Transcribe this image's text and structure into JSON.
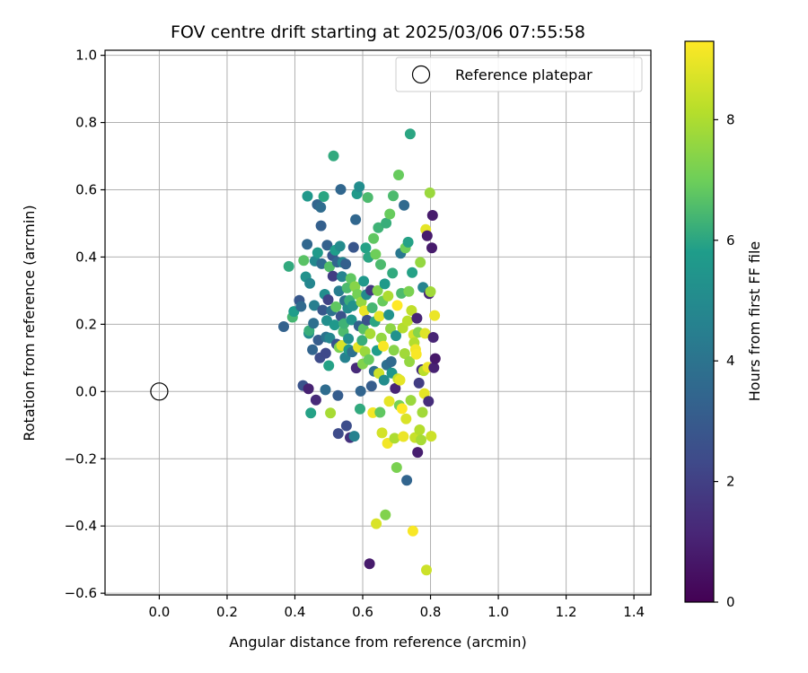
{
  "chart_data": {
    "type": "scatter",
    "title": "FOV centre drift starting at 2025/03/06 07:55:58",
    "xlabel": "Angular distance from reference (arcmin)",
    "ylabel": "Rotation from reference (arcmin)",
    "xlim": [
      -0.16,
      1.45
    ],
    "ylim": [
      -0.605,
      1.015
    ],
    "xticks": [
      "0.0",
      "0.2",
      "0.4",
      "0.6",
      "0.8",
      "1.0",
      "1.2",
      "1.4"
    ],
    "xtick_values": [
      0.0,
      0.2,
      0.4,
      0.6,
      0.8,
      1.0,
      1.2,
      1.4
    ],
    "yticks": [
      "−0.6",
      "−0.4",
      "−0.2",
      "0.0",
      "0.2",
      "0.4",
      "0.6",
      "0.8",
      "1.0"
    ],
    "ytick_values": [
      -0.6,
      -0.4,
      -0.2,
      0.0,
      0.2,
      0.4,
      0.6,
      0.8,
      1.0
    ],
    "grid": true,
    "legend": {
      "placement": "top-right",
      "entries": [
        "Reference platepar"
      ]
    },
    "reference_point": {
      "x": 0.0,
      "y": 0.0,
      "label": "Reference platepar"
    },
    "colorbar": {
      "label": "Hours from first FF file",
      "range": [
        0,
        9.3
      ],
      "ticks": [
        "0",
        "2",
        "4",
        "6",
        "8"
      ],
      "tick_values": [
        0,
        2,
        4,
        6,
        8
      ],
      "colormap": [
        "#440154",
        "#482777",
        "#3f4a8a",
        "#31678e",
        "#26838f",
        "#1f9d8a",
        "#6cce5a",
        "#b6de2b",
        "#fee825"
      ]
    },
    "points": [
      [
        0.367,
        0.193,
        3.3
      ],
      [
        0.382,
        0.372,
        6.1
      ],
      [
        0.393,
        0.221,
        6.4
      ],
      [
        0.397,
        0.238,
        5.8
      ],
      [
        0.413,
        0.271,
        2.9
      ],
      [
        0.418,
        0.253,
        3.6
      ],
      [
        0.424,
        0.018,
        2.7
      ],
      [
        0.426,
        0.39,
        6.7
      ],
      [
        0.432,
        0.341,
        5.3
      ],
      [
        0.436,
        0.438,
        3.5
      ],
      [
        0.437,
        0.581,
        5.6
      ],
      [
        0.44,
        0.008,
        1.0
      ],
      [
        0.441,
        0.173,
        5.0
      ],
      [
        0.442,
        0.181,
        6.2
      ],
      [
        0.444,
        0.322,
        4.8
      ],
      [
        0.447,
        -0.064,
        5.9
      ],
      [
        0.452,
        0.124,
        3.4
      ],
      [
        0.455,
        0.203,
        3.8
      ],
      [
        0.457,
        0.256,
        4.5
      ],
      [
        0.459,
        0.388,
        4.9
      ],
      [
        0.462,
        -0.025,
        1.3
      ],
      [
        0.466,
        0.556,
        3.4
      ],
      [
        0.467,
        0.413,
        5.7
      ],
      [
        0.469,
        0.153,
        3.1
      ],
      [
        0.474,
        0.1,
        2.4
      ],
      [
        0.476,
        0.548,
        3.7
      ],
      [
        0.477,
        0.493,
        3.2
      ],
      [
        0.479,
        0.38,
        3.7
      ],
      [
        0.482,
        0.242,
        2.9
      ],
      [
        0.485,
        0.58,
        6.0
      ],
      [
        0.488,
        0.289,
        5.1
      ],
      [
        0.49,
        0.005,
        3.7
      ],
      [
        0.491,
        0.114,
        2.3
      ],
      [
        0.492,
        0.162,
        4.0
      ],
      [
        0.494,
        0.211,
        5.2
      ],
      [
        0.495,
        0.435,
        3.3
      ],
      [
        0.498,
        0.273,
        2.1
      ],
      [
        0.5,
        0.077,
        5.9
      ],
      [
        0.502,
        0.371,
        6.6
      ],
      [
        0.503,
        0.159,
        4.8
      ],
      [
        0.505,
        -0.064,
        7.9
      ],
      [
        0.508,
        0.24,
        3.9
      ],
      [
        0.511,
        0.404,
        2.8
      ],
      [
        0.512,
        0.343,
        1.9
      ],
      [
        0.514,
        0.701,
        6.1
      ],
      [
        0.517,
        0.198,
        5.6
      ],
      [
        0.519,
        0.42,
        5.8
      ],
      [
        0.521,
        0.252,
        6.8
      ],
      [
        0.523,
        0.141,
        2.7
      ],
      [
        0.525,
        0.385,
        3.4
      ],
      [
        0.527,
        -0.012,
        3.1
      ],
      [
        0.528,
        -0.125,
        2.4
      ],
      [
        0.53,
        0.299,
        4.4
      ],
      [
        0.531,
        0.131,
        7.2
      ],
      [
        0.533,
        0.432,
        5.0
      ],
      [
        0.535,
        0.601,
        3.5
      ],
      [
        0.536,
        0.224,
        2.7
      ],
      [
        0.538,
        0.137,
        8.7
      ],
      [
        0.539,
        0.342,
        4.7
      ],
      [
        0.541,
        0.384,
        4.8
      ],
      [
        0.543,
        0.178,
        6.5
      ],
      [
        0.545,
        0.202,
        6.3
      ],
      [
        0.547,
        0.27,
        3.8
      ],
      [
        0.548,
        0.101,
        4.6
      ],
      [
        0.55,
        0.379,
        3.2
      ],
      [
        0.552,
        -0.102,
        2.5
      ],
      [
        0.554,
        0.308,
        6.5
      ],
      [
        0.556,
        0.248,
        5.0
      ],
      [
        0.558,
        0.157,
        5.2
      ],
      [
        0.559,
        0.124,
        5.6
      ],
      [
        0.561,
        0.271,
        6.2
      ],
      [
        0.563,
        -0.137,
        1.5
      ],
      [
        0.565,
        0.336,
        6.8
      ],
      [
        0.567,
        0.213,
        5.4
      ],
      [
        0.569,
        0.118,
        3.9
      ],
      [
        0.571,
        0.255,
        5.3
      ],
      [
        0.573,
        0.429,
        2.8
      ],
      [
        0.575,
        -0.133,
        4.6
      ],
      [
        0.577,
        0.312,
        7.4
      ],
      [
        0.579,
        0.511,
        3.5
      ],
      [
        0.581,
        0.07,
        1.3
      ],
      [
        0.583,
        0.588,
        5.7
      ],
      [
        0.585,
        0.289,
        7.1
      ],
      [
        0.587,
        0.132,
        8.9
      ],
      [
        0.589,
        0.195,
        3.3
      ],
      [
        0.59,
        0.609,
        5.1
      ],
      [
        0.592,
        -0.052,
        6.1
      ],
      [
        0.594,
        0.001,
        3.4
      ],
      [
        0.596,
        0.266,
        7.6
      ],
      [
        0.598,
        0.152,
        6.2
      ],
      [
        0.6,
        0.082,
        7.3
      ],
      [
        0.602,
        0.186,
        6.7
      ],
      [
        0.603,
        0.328,
        5.6
      ],
      [
        0.605,
        0.24,
        9.0
      ],
      [
        0.607,
        0.119,
        7.7
      ],
      [
        0.609,
        0.427,
        5.9
      ],
      [
        0.611,
        0.288,
        5.0
      ],
      [
        0.613,
        0.212,
        2.6
      ],
      [
        0.615,
        0.577,
        6.5
      ],
      [
        0.617,
        0.399,
        6.0
      ],
      [
        0.618,
        0.095,
        6.9
      ],
      [
        0.62,
        -0.512,
        0.8
      ],
      [
        0.622,
        0.172,
        7.9
      ],
      [
        0.624,
        0.301,
        1.7
      ],
      [
        0.626,
        0.016,
        3.1
      ],
      [
        0.628,
        0.249,
        6.4
      ],
      [
        0.63,
        -0.063,
        9.1
      ],
      [
        0.632,
        0.455,
        6.8
      ],
      [
        0.634,
        0.06,
        3.8
      ],
      [
        0.636,
        0.208,
        6.0
      ],
      [
        0.638,
        0.408,
        7.0
      ],
      [
        0.64,
        -0.393,
        8.7
      ],
      [
        0.642,
        0.122,
        5.8
      ],
      [
        0.644,
        0.3,
        7.3
      ],
      [
        0.646,
        0.487,
        6.3
      ],
      [
        0.648,
        0.054,
        8.5
      ],
      [
        0.649,
        0.224,
        8.9
      ],
      [
        0.651,
        -0.062,
        6.8
      ],
      [
        0.653,
        0.378,
        6.5
      ],
      [
        0.655,
        0.159,
        7.6
      ],
      [
        0.657,
        -0.123,
        8.6
      ],
      [
        0.659,
        0.269,
        6.9
      ],
      [
        0.661,
        0.135,
        9.2
      ],
      [
        0.663,
        0.034,
        5.1
      ],
      [
        0.665,
        0.32,
        5.7
      ],
      [
        0.667,
        -0.367,
        7.3
      ],
      [
        0.669,
        0.501,
        6.2
      ],
      [
        0.671,
        0.079,
        3.8
      ],
      [
        0.673,
        -0.154,
        9.1
      ],
      [
        0.675,
        0.284,
        8.0
      ],
      [
        0.677,
        0.228,
        5.3
      ],
      [
        0.678,
        -0.029,
        8.9
      ],
      [
        0.68,
        0.528,
        6.9
      ],
      [
        0.682,
        0.187,
        7.5
      ],
      [
        0.684,
        0.089,
        3.6
      ],
      [
        0.686,
        0.055,
        5.5
      ],
      [
        0.688,
        0.352,
        6.1
      ],
      [
        0.69,
        0.582,
        6.5
      ],
      [
        0.692,
        0.123,
        7.4
      ],
      [
        0.694,
        -0.139,
        8.0
      ],
      [
        0.696,
        0.009,
        1.1
      ],
      [
        0.698,
        0.166,
        5.3
      ],
      [
        0.7,
        -0.226,
        7.2
      ],
      [
        0.702,
        0.256,
        9.3
      ],
      [
        0.704,
        0.038,
        8.4
      ],
      [
        0.706,
        0.644,
        6.9
      ],
      [
        0.708,
        -0.041,
        7.1
      ],
      [
        0.71,
        0.034,
        8.9
      ],
      [
        0.712,
        0.411,
        4.2
      ],
      [
        0.714,
        0.292,
        6.5
      ],
      [
        0.716,
        -0.051,
        9.3
      ],
      [
        0.718,
        0.189,
        8.1
      ],
      [
        0.72,
        -0.134,
        9.0
      ],
      [
        0.722,
        0.554,
        3.6
      ],
      [
        0.724,
        0.113,
        7.8
      ],
      [
        0.726,
        0.427,
        7.0
      ],
      [
        0.728,
        -0.081,
        8.7
      ],
      [
        0.73,
        -0.264,
        3.4
      ],
      [
        0.732,
        0.21,
        8.2
      ],
      [
        0.734,
        0.444,
        5.9
      ],
      [
        0.736,
        0.298,
        7.2
      ],
      [
        0.738,
        0.089,
        7.6
      ],
      [
        0.74,
        0.766,
        6.0
      ],
      [
        0.742,
        -0.026,
        7.7
      ],
      [
        0.744,
        0.241,
        8.3
      ],
      [
        0.746,
        0.354,
        5.9
      ],
      [
        0.748,
        -0.415,
        9.2
      ],
      [
        0.75,
        0.169,
        8.6
      ],
      [
        0.752,
        0.145,
        8.1
      ],
      [
        0.754,
        -0.137,
        8.4
      ],
      [
        0.756,
        0.125,
        9.1
      ],
      [
        0.758,
        0.111,
        9.2
      ],
      [
        0.76,
        0.218,
        1.1
      ],
      [
        0.762,
        -0.181,
        0.9
      ],
      [
        0.764,
        0.176,
        7.4
      ],
      [
        0.766,
        0.025,
        1.9
      ],
      [
        0.768,
        -0.114,
        8.1
      ],
      [
        0.77,
        0.384,
        7.6
      ],
      [
        0.772,
        -0.144,
        7.9
      ],
      [
        0.774,
        0.065,
        1.5
      ],
      [
        0.776,
        -0.062,
        7.8
      ],
      [
        0.778,
        0.31,
        4.7
      ],
      [
        0.78,
        0.062,
        8.2
      ],
      [
        0.782,
        -0.006,
        8.9
      ],
      [
        0.784,
        0.173,
        8.8
      ],
      [
        0.786,
        0.482,
        8.9
      ],
      [
        0.788,
        -0.531,
        8.5
      ],
      [
        0.79,
        0.463,
        0.8
      ],
      [
        0.792,
        0.072,
        9.0
      ],
      [
        0.794,
        -0.029,
        1.4
      ],
      [
        0.796,
        0.291,
        1.2
      ],
      [
        0.798,
        0.591,
        7.7
      ],
      [
        0.8,
        0.297,
        7.8
      ],
      [
        0.802,
        -0.133,
        8.5
      ],
      [
        0.804,
        0.427,
        0.8
      ],
      [
        0.806,
        0.524,
        0.8
      ],
      [
        0.808,
        0.161,
        1.1
      ],
      [
        0.81,
        0.071,
        1.0
      ],
      [
        0.812,
        0.226,
        9.0
      ],
      [
        0.814,
        0.098,
        0.7
      ]
    ]
  }
}
